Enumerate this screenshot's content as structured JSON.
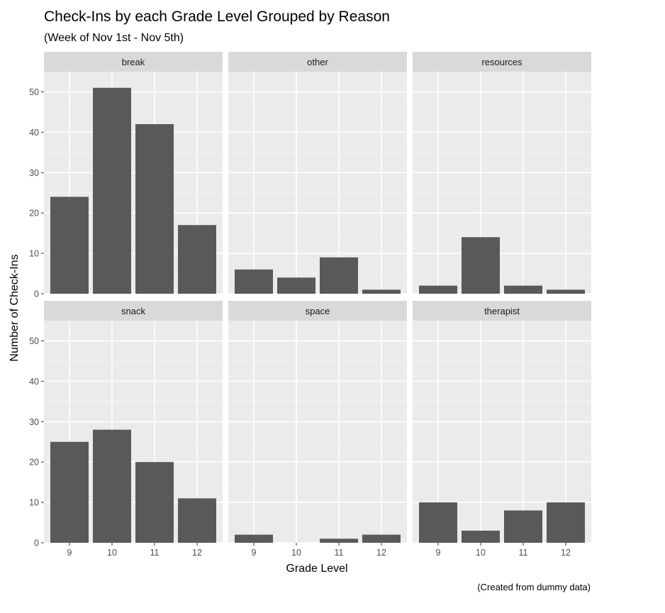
{
  "chart_data": {
    "type": "bar",
    "title": "Check-Ins by each Grade Level Grouped by Reason",
    "subtitle": "(Week of Nov 1st - Nov 5th)",
    "xlabel": "Grade Level",
    "ylabel": "Number of Check-Ins",
    "caption": "(Created from dummy data)",
    "categories": [
      "9",
      "10",
      "11",
      "12"
    ],
    "ylim": [
      0,
      55
    ],
    "yticks": [
      "0",
      "10",
      "20",
      "30",
      "40",
      "50"
    ],
    "grid": true,
    "bar_color": "#595959",
    "panel_background": "#ebebeb",
    "strip_background": "#d9d9d9",
    "facets": [
      {
        "label": "break",
        "values": [
          24,
          51,
          42,
          17
        ]
      },
      {
        "label": "other",
        "values": [
          6,
          4,
          9,
          1
        ]
      },
      {
        "label": "resources",
        "values": [
          2,
          14,
          2,
          1
        ]
      },
      {
        "label": "snack",
        "values": [
          25,
          28,
          20,
          11
        ]
      },
      {
        "label": "space",
        "values": [
          2,
          0,
          1,
          2
        ]
      },
      {
        "label": "therapist",
        "values": [
          10,
          3,
          8,
          10
        ]
      }
    ]
  }
}
